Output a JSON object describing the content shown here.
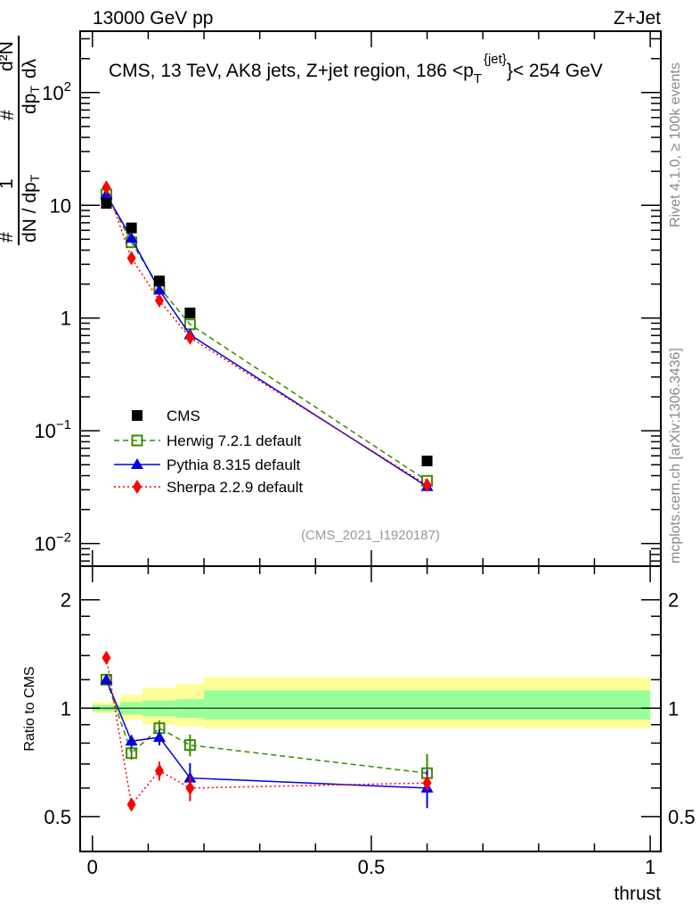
{
  "chart_data": {
    "type": "scatter",
    "header_left": "13000 GeV pp",
    "header_right": "Z+Jet",
    "title": "CMS, 13 TeV, AK8 jets, Z+jet region, 186 <p",
    "title_sub": "T",
    "title_sup": "{jet}",
    "title_end": "}< 254 GeV",
    "ylabel_parts": {
      "hash1": "#",
      "one": "1",
      "denom": "dN / dp",
      "denom_sub": "T",
      "hash2": "#",
      "num": "d²N",
      "num_den": "dp",
      "num_den_sub": "T",
      "num_den_end": "dλ"
    },
    "ratio_ylabel": "Ratio to CMS",
    "xlabel": "thrust",
    "analysis_id": "(CMS_2021_I1920187)",
    "side_text_top": "Rivet 4.1.0, ≥ 100k events",
    "side_text_bottom": "mcplots.cern.ch [arXiv:1306.3436]",
    "xlim": [
      -0.022,
      1.019
    ],
    "ylim": [
      0.0063,
      350
    ],
    "yscale": "log",
    "ratio_ylim": [
      0.4,
      2.48
    ],
    "x_ticks": [
      {
        "v": 0,
        "label": "0"
      },
      {
        "v": 0.5,
        "label": "0.5"
      },
      {
        "v": 1,
        "label": "1"
      }
    ],
    "y_ticks": [
      {
        "v": 100,
        "base": "10",
        "exp": "2"
      },
      {
        "v": 10,
        "base": "10",
        "exp": ""
      },
      {
        "v": 1,
        "base": "1",
        "exp": ""
      },
      {
        "v": 0.1,
        "base": "10",
        "exp": "−1"
      },
      {
        "v": 0.01,
        "base": "10",
        "exp": "−2"
      }
    ],
    "ratio_ticks": [
      {
        "v": 2,
        "label": "2"
      },
      {
        "v": 1,
        "label": "1"
      },
      {
        "v": 0.5,
        "label": "0.5"
      }
    ],
    "bin_edges": [
      0,
      0.05,
      0.09,
      0.15,
      0.2,
      1.0
    ],
    "x": [
      0.025,
      0.07,
      0.12,
      0.175,
      0.6
    ],
    "data": {
      "name": "CMS",
      "values": [
        10.4,
        6.3,
        2.13,
        1.11,
        0.054
      ],
      "band_inner": [
        [
          0.98,
          1.02
        ],
        [
          0.96,
          1.04
        ],
        [
          0.95,
          1.05
        ],
        [
          0.94,
          1.06
        ],
        [
          0.93,
          1.12
        ]
      ],
      "band_outer": [
        [
          0.97,
          1.04
        ],
        [
          0.93,
          1.09
        ],
        [
          0.9,
          1.14
        ],
        [
          0.89,
          1.17
        ],
        [
          0.88,
          1.22
        ]
      ]
    },
    "series": [
      {
        "name": "Herwig 7.2.1 default",
        "color": "#3a8a00",
        "marker": "open-square",
        "dash": "6,4",
        "values": [
          12.5,
          4.7,
          1.87,
          0.88,
          0.036
        ],
        "ratio": [
          1.2,
          0.75,
          0.88,
          0.79,
          0.66
        ],
        "rel_err": [
          0.01,
          0.04,
          0.05,
          0.07,
          0.13
        ]
      },
      {
        "name": "Pythia 8.315 default",
        "color": "#0000e0",
        "marker": "triangle",
        "dash": "",
        "values": [
          12.5,
          5.1,
          1.77,
          0.71,
          0.032
        ],
        "ratio": [
          1.2,
          0.81,
          0.83,
          0.64,
          0.6
        ],
        "rel_err": [
          0.01,
          0.04,
          0.05,
          0.1,
          0.12
        ]
      },
      {
        "name": "Sherpa 2.2.9 default",
        "color": "#ff0000",
        "marker": "diamond",
        "dash": "2,3",
        "values": [
          14.4,
          3.4,
          1.43,
          0.67,
          0.033
        ],
        "ratio": [
          1.38,
          0.54,
          0.67,
          0.6,
          0.62
        ],
        "rel_err": [
          0.01,
          0.04,
          0.06,
          0.08,
          0.05
        ]
      }
    ],
    "band_colors": {
      "inner": "#99ff99",
      "outer": "#ffff99"
    }
  }
}
